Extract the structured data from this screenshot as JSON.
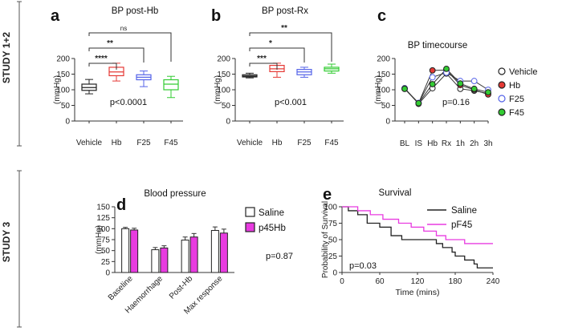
{
  "study_labels": {
    "top": "STUDY 1+2",
    "bottom": "STUDY 3"
  },
  "colors": {
    "black": "#222222",
    "red": "#e53935",
    "blue": "#5563e8",
    "green": "#33cc33",
    "magenta": "#e83be0",
    "gray": "#888888"
  },
  "chart_data": [
    {
      "panel": "a",
      "type": "box",
      "title": "BP post-Hb",
      "ylabel": "(mmHg)",
      "ylim": [
        0,
        200
      ],
      "yticks": [
        0,
        50,
        100,
        150,
        200
      ],
      "categories": [
        "Vehicle",
        "Hb",
        "F25",
        "F45"
      ],
      "series_colors": [
        "#222222",
        "#e53935",
        "#5563e8",
        "#33cc33"
      ],
      "boxes": [
        {
          "min": 87,
          "q1": 98,
          "median": 107,
          "q3": 118,
          "max": 133
        },
        {
          "min": 128,
          "q1": 145,
          "median": 157,
          "q3": 172,
          "max": 185
        },
        {
          "min": 110,
          "q1": 132,
          "median": 140,
          "q3": 148,
          "max": 160
        },
        {
          "min": 75,
          "q1": 100,
          "median": 118,
          "q3": 132,
          "max": 143
        }
      ],
      "brackets": [
        {
          "from": 0,
          "to": 1,
          "label": "****"
        },
        {
          "from": 0,
          "to": 2,
          "label": "**"
        },
        {
          "from": 0,
          "to": 3,
          "label": "ns"
        }
      ],
      "stat": "p<0.0001"
    },
    {
      "panel": "b",
      "type": "box",
      "title": "BP post-Rx",
      "ylabel": "(mmHg)",
      "ylim": [
        0,
        200
      ],
      "yticks": [
        0,
        50,
        100,
        150,
        200
      ],
      "categories": [
        "Vehicle",
        "Hb",
        "F25",
        "F45"
      ],
      "series_colors": [
        "#222222",
        "#e53935",
        "#5563e8",
        "#33cc33"
      ],
      "boxes": [
        {
          "min": 138,
          "q1": 141,
          "median": 144,
          "q3": 148,
          "max": 153
        },
        {
          "min": 140,
          "q1": 158,
          "median": 167,
          "q3": 178,
          "max": 185
        },
        {
          "min": 140,
          "q1": 148,
          "median": 157,
          "q3": 165,
          "max": 172
        },
        {
          "min": 153,
          "q1": 160,
          "median": 167,
          "q3": 172,
          "max": 182
        }
      ],
      "brackets": [
        {
          "from": 0,
          "to": 1,
          "label": "***"
        },
        {
          "from": 0,
          "to": 2,
          "label": "*"
        },
        {
          "from": 0,
          "to": 3,
          "label": "**"
        }
      ],
      "stat": "p<0.001"
    },
    {
      "panel": "c",
      "type": "line",
      "title": "BP timecourse",
      "ylabel": "(mmHg)",
      "ylim": [
        0,
        200
      ],
      "yticks": [
        0,
        50,
        100,
        150,
        200
      ],
      "categories": [
        "BL",
        "IS",
        "Hb",
        "Rx",
        "1h",
        "2h",
        "3h"
      ],
      "series": [
        {
          "name": "Vehicle",
          "fill": "#ffffff",
          "stroke": "#222222",
          "values": [
            105,
            55,
            105,
            152,
            103,
            97,
            88
          ]
        },
        {
          "name": "Hb",
          "fill": "#e53935",
          "stroke": "#222222",
          "values": [
            103,
            57,
            162,
            163,
            115,
            100,
            85
          ]
        },
        {
          "name": "F25",
          "fill": "#ffffff",
          "stroke": "#5563e8",
          "values": [
            104,
            58,
            140,
            155,
            128,
            128,
            100
          ]
        },
        {
          "name": "F45",
          "fill": "#33cc33",
          "stroke": "#222222",
          "values": [
            103,
            57,
            118,
            167,
            120,
            103,
            92
          ]
        }
      ],
      "stat": "p=0.16"
    },
    {
      "panel": "d",
      "type": "bar",
      "title": "Blood pressure",
      "ylabel": "(mmHg)",
      "ylim": [
        0,
        150
      ],
      "yticks": [
        0,
        25,
        50,
        75,
        100,
        125,
        150
      ],
      "categories": [
        "Baseline",
        "Haemorrhage",
        "Post-Hb",
        "Max response"
      ],
      "series": [
        {
          "name": "Saline",
          "fill": "#ffffff",
          "values": [
            100,
            52,
            74,
            96
          ],
          "errors": [
            3,
            5,
            7,
            8
          ]
        },
        {
          "name": "p45Hb",
          "fill": "#e83be0",
          "values": [
            97,
            56,
            81,
            90
          ],
          "errors": [
            4,
            5,
            8,
            9
          ]
        }
      ],
      "stat": "p=0.87"
    },
    {
      "panel": "e",
      "type": "step",
      "title": "Survival",
      "ylabel": "Probability of Survival",
      "xlabel": "Time (mins)",
      "xlim": [
        0,
        240
      ],
      "xticks": [
        0,
        60,
        120,
        180,
        240
      ],
      "ylim": [
        0,
        100
      ],
      "yticks": [
        0,
        25,
        50,
        75,
        100
      ],
      "series": [
        {
          "name": "Saline",
          "color": "#222222",
          "points": [
            [
              0,
              100
            ],
            [
              10,
              94
            ],
            [
              25,
              88
            ],
            [
              40,
              75
            ],
            [
              60,
              69
            ],
            [
              78,
              56
            ],
            [
              95,
              50
            ],
            [
              140,
              50
            ],
            [
              150,
              44
            ],
            [
              160,
              38
            ],
            [
              175,
              31
            ],
            [
              180,
              25
            ],
            [
              195,
              19
            ],
            [
              210,
              13
            ],
            [
              215,
              7
            ],
            [
              240,
              7
            ]
          ]
        },
        {
          "name": "pF45",
          "color": "#e83be0",
          "points": [
            [
              0,
              100
            ],
            [
              25,
              94
            ],
            [
              45,
              88
            ],
            [
              65,
              81
            ],
            [
              90,
              75
            ],
            [
              110,
              69
            ],
            [
              130,
              63
            ],
            [
              150,
              56
            ],
            [
              165,
              50
            ],
            [
              195,
              44
            ],
            [
              240,
              44
            ]
          ]
        }
      ],
      "stat": "p=0.03"
    }
  ]
}
